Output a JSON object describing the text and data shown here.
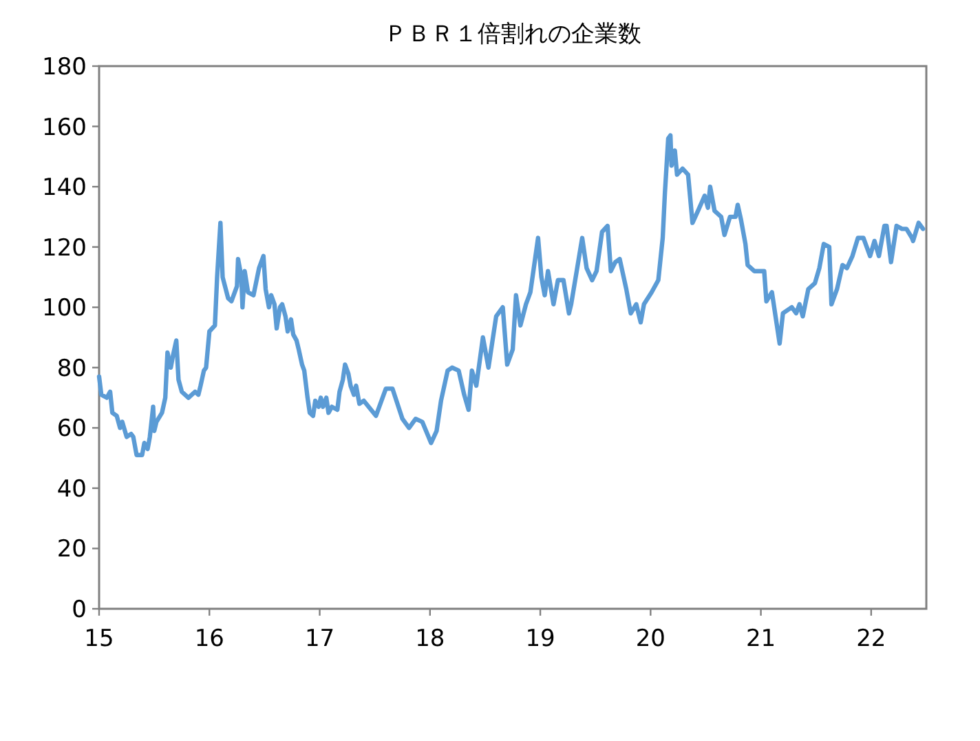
{
  "chart_data": {
    "type": "line",
    "title": "ＰＢＲ１倍割れの企業数",
    "x": [
      15.0,
      15.02,
      15.07,
      15.1,
      15.12,
      15.16,
      15.19,
      15.21,
      15.25,
      15.29,
      15.31,
      15.34,
      15.39,
      15.41,
      15.44,
      15.46,
      15.49,
      15.5,
      15.52,
      15.57,
      15.6,
      15.62,
      15.65,
      15.67,
      15.7,
      15.72,
      15.75,
      15.81,
      15.87,
      15.9,
      15.92,
      15.95,
      15.97,
      16.0,
      16.05,
      16.07,
      16.1,
      16.12,
      16.17,
      16.2,
      16.22,
      16.25,
      16.26,
      16.29,
      16.3,
      16.32,
      16.35,
      16.4,
      16.45,
      16.49,
      16.51,
      16.54,
      16.56,
      16.59,
      16.61,
      16.64,
      16.66,
      16.69,
      16.71,
      16.74,
      16.76,
      16.79,
      16.81,
      16.84,
      16.86,
      16.89,
      16.91,
      16.94,
      16.96,
      16.99,
      17.01,
      17.03,
      17.06,
      17.08,
      17.11,
      17.16,
      17.18,
      17.21,
      17.23,
      17.26,
      17.28,
      17.31,
      17.33,
      17.36,
      17.4,
      17.51,
      17.6,
      17.66,
      17.75,
      17.81,
      17.87,
      17.93,
      18.01,
      18.06,
      18.1,
      18.16,
      18.2,
      18.26,
      18.31,
      18.35,
      18.38,
      18.42,
      18.45,
      18.48,
      18.53,
      18.6,
      18.66,
      18.7,
      18.75,
      18.78,
      18.82,
      18.87,
      18.91,
      18.98,
      19.01,
      19.04,
      19.07,
      19.12,
      19.16,
      19.21,
      19.26,
      19.28,
      19.33,
      19.38,
      19.42,
      19.47,
      19.51,
      19.56,
      19.61,
      19.64,
      19.68,
      19.72,
      19.78,
      19.82,
      19.87,
      19.91,
      19.94,
      20.01,
      20.07,
      20.11,
      20.13,
      20.16,
      20.18,
      20.19,
      20.22,
      20.24,
      20.29,
      20.34,
      20.38,
      20.43,
      20.49,
      20.52,
      20.54,
      20.58,
      20.64,
      20.67,
      20.72,
      20.77,
      20.79,
      20.82,
      20.86,
      20.88,
      20.94,
      21.03,
      21.05,
      21.1,
      21.17,
      21.2,
      21.28,
      21.32,
      21.35,
      21.38,
      21.43,
      21.49,
      21.53,
      21.57,
      21.62,
      21.64,
      21.69,
      21.74,
      21.78,
      21.83,
      21.88,
      21.93,
      21.99,
      22.03,
      22.07,
      22.12,
      22.14,
      22.18,
      22.23,
      22.28,
      22.32,
      22.37,
      22.38,
      22.43,
      22.47
    ],
    "series": [
      {
        "color": "#5b9bd5",
        "values": [
          77,
          71,
          70,
          72,
          65,
          64,
          60,
          62,
          57,
          58,
          57,
          51,
          51,
          55,
          53,
          57,
          67,
          59,
          62,
          65,
          70,
          85,
          80,
          84,
          89,
          76,
          72,
          70,
          72,
          71,
          74,
          79,
          80,
          92,
          94,
          110,
          128,
          110,
          103,
          102,
          104,
          107,
          116,
          110,
          100,
          112,
          105,
          104,
          113,
          117,
          106,
          100,
          104,
          101,
          93,
          100,
          101,
          97,
          92,
          96,
          91,
          89,
          86,
          81,
          79,
          70,
          65,
          64,
          69,
          67,
          70,
          67,
          70,
          65,
          67,
          66,
          72,
          76,
          81,
          78,
          74,
          71,
          74,
          68,
          69,
          64,
          73,
          73,
          63,
          60,
          63,
          62,
          55,
          59,
          69,
          79,
          80,
          79,
          71,
          66,
          79,
          74,
          82,
          90,
          80,
          97,
          100,
          81,
          86,
          104,
          94,
          101,
          105,
          123,
          110,
          104,
          112,
          101,
          109,
          109,
          98,
          101,
          112,
          123,
          113,
          109,
          112,
          125,
          127,
          112,
          115,
          116,
          106,
          98,
          101,
          95,
          101,
          105,
          109,
          123,
          138,
          156,
          157,
          147,
          152,
          144,
          146,
          144,
          128,
          132,
          137,
          133,
          140,
          132,
          130,
          124,
          130,
          130,
          134,
          129,
          121,
          114,
          112,
          112,
          102,
          105,
          88,
          98,
          100,
          98,
          101,
          97,
          106,
          108,
          113,
          121,
          120,
          101,
          106,
          114,
          113,
          117,
          123,
          123,
          117,
          122,
          117,
          127,
          127,
          115,
          127,
          126,
          126,
          123,
          122,
          128,
          126
        ]
      }
    ],
    "xlim": [
      15,
      22.5
    ],
    "xticks": [
      15,
      16,
      17,
      18,
      19,
      20,
      21,
      22
    ],
    "ylim": [
      0,
      180
    ],
    "yticks": [
      0,
      20,
      40,
      60,
      80,
      100,
      120,
      140,
      160,
      180
    ],
    "grid": false,
    "marker": "none",
    "line_style": "solid"
  }
}
